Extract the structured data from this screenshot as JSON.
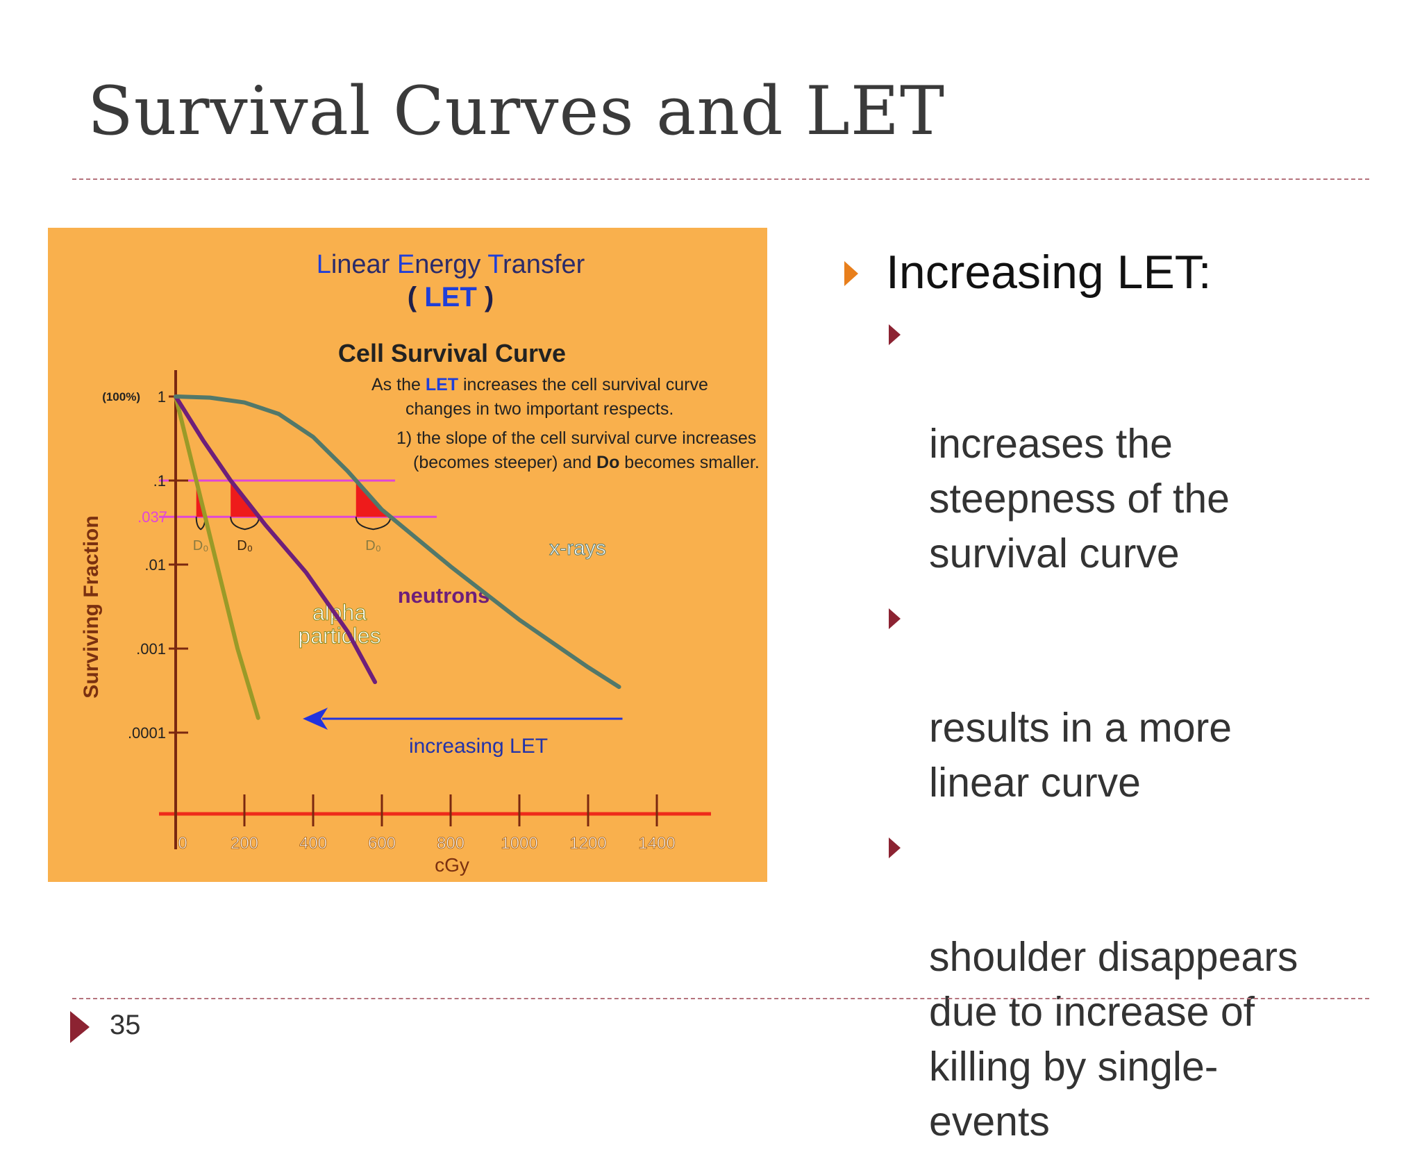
{
  "slide": {
    "title": "Survival Curves and LET",
    "page_number": "35",
    "colors": {
      "accent_orange": "#e87f1c",
      "accent_maroon": "#8c2332",
      "divider": "#b5737d",
      "panel": "#f9b04d"
    }
  },
  "bullets": {
    "heading": "Increasing LET:",
    "items": [
      "increases the\nsteepness of the\nsurvival curve",
      "results in a more\nlinear curve",
      "shoulder disappears\ndue to increase of\nkilling by single-\nevents"
    ]
  },
  "chart_data": {
    "type": "line",
    "title_parts": [
      {
        "text": "L",
        "color": "#1f3fd8"
      },
      {
        "text": "inear ",
        "color": "#2b2b6a"
      },
      {
        "text": "E",
        "color": "#1f3fd8"
      },
      {
        "text": "nergy ",
        "color": "#2b2b6a"
      },
      {
        "text": "T",
        "color": "#1f3fd8"
      },
      {
        "text": "ransfer",
        "color": "#2b2b6a"
      }
    ],
    "subtitle_open": "( ",
    "subtitle_let": "LET",
    "subtitle_close": " )",
    "heading": "Cell Survival Curve",
    "note_line1_a": "As the ",
    "note_line1_let": "LET",
    "note_line1_b": " increases the cell survival curve",
    "note_line2": "changes in two important respects.",
    "note_line3": "1) the slope of the cell survival curve increases",
    "note_line4_a": "(becomes steeper) and ",
    "note_line4_d0": "Do",
    "note_line4_b": " becomes smaller.",
    "xlabel": "cGy",
    "ylabel": "Surviving Fraction",
    "x_ticks": [
      0,
      200,
      400,
      600,
      800,
      1000,
      1200,
      1400
    ],
    "x_tick_labels": [
      "0",
      "200",
      "400",
      "600",
      "800",
      "1000",
      "1200",
      "1400"
    ],
    "y_ticks": [
      1,
      0.1,
      0.01,
      0.001,
      0.0001
    ],
    "y_tick_labels": [
      "1",
      ".1",
      ".01",
      ".001",
      ".0001"
    ],
    "y_top_prefix": "(100%)",
    "reference_levels": [
      {
        "value": 0.1
      },
      {
        "value": 0.037,
        "label": ".037"
      }
    ],
    "d0_label": "D₀",
    "xlim": [
      0,
      1550
    ],
    "yscale": "log",
    "ylim": [
      2e-05,
      2
    ],
    "series": [
      {
        "name": "alpha particles",
        "label_lines": [
          "alpha",
          "particles"
        ],
        "color": "#9a9a28",
        "points": [
          [
            0,
            1
          ],
          [
            60,
            0.1
          ],
          [
            120,
            0.01
          ],
          [
            180,
            0.001
          ],
          [
            240,
            0.00015
          ]
        ]
      },
      {
        "name": "neutrons",
        "label_lines": [
          "neutrons"
        ],
        "color": "#6e1f7a",
        "points": [
          [
            0,
            1
          ],
          [
            80,
            0.3
          ],
          [
            160,
            0.1
          ],
          [
            260,
            0.03
          ],
          [
            380,
            0.008
          ],
          [
            500,
            0.0016
          ],
          [
            580,
            0.0004
          ]
        ]
      },
      {
        "name": "x-rays",
        "label_lines": [
          "x-rays"
        ],
        "color": "#52786a",
        "points": [
          [
            0,
            1
          ],
          [
            100,
            0.97
          ],
          [
            200,
            0.85
          ],
          [
            300,
            0.62
          ],
          [
            400,
            0.33
          ],
          [
            500,
            0.13
          ],
          [
            600,
            0.045
          ],
          [
            800,
            0.0095
          ],
          [
            1000,
            0.0022
          ],
          [
            1200,
            0.0006
          ],
          [
            1290,
            0.00035
          ]
        ]
      }
    ],
    "annotation_arrow": {
      "label": "increasing LET",
      "from_x": 1300,
      "to_x": 390,
      "y": 0.00015,
      "color": "#2233dd"
    }
  }
}
